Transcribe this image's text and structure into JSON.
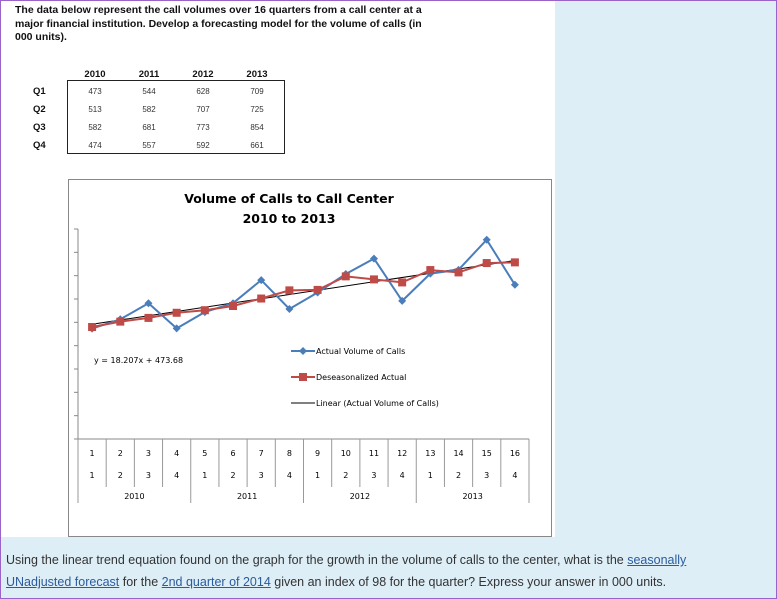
{
  "intro_text": "The data below represent the call volumes over 16 quarters from a call center at a major financial institution. Develop a forecasting model for the volume of calls (in 000 units).",
  "table": {
    "columns": [
      "2010",
      "2011",
      "2012",
      "2013"
    ],
    "rows": [
      {
        "label": "Q1",
        "values": [
          "473",
          "544",
          "628",
          "709"
        ]
      },
      {
        "label": "Q2",
        "values": [
          "513",
          "582",
          "707",
          "725"
        ]
      },
      {
        "label": "Q3",
        "values": [
          "582",
          "681",
          "773",
          "854"
        ]
      },
      {
        "label": "Q4",
        "values": [
          "474",
          "557",
          "592",
          "661"
        ]
      }
    ]
  },
  "chart_data": {
    "type": "line",
    "title": "Volume of Calls to Call Center",
    "subtitle": "2010 to 2013",
    "ylim": [
      0,
      900
    ],
    "y_ticks": [
      "0",
      "100",
      "200",
      "300",
      "400",
      "500",
      "600",
      "700",
      "800",
      "900"
    ],
    "x_index_labels": [
      "1",
      "2",
      "3",
      "4",
      "5",
      "6",
      "7",
      "8",
      "9",
      "10",
      "11",
      "12",
      "13",
      "14",
      "15",
      "16"
    ],
    "x_quarter_labels": [
      "1",
      "2",
      "3",
      "4",
      "1",
      "2",
      "3",
      "4",
      "1",
      "2",
      "3",
      "4",
      "1",
      "2",
      "3",
      "4"
    ],
    "x_year_labels": [
      "2010",
      "2011",
      "2012",
      "2013"
    ],
    "trend_equation": "y = 18.207x + 473.68",
    "trend": {
      "slope": 18.207,
      "intercept": 473.68
    },
    "legend_position": "right",
    "series": [
      {
        "name": "Actual Volume of Calls",
        "color": "#4a7ebb",
        "marker": "diamond",
        "values": [
          473,
          513,
          582,
          474,
          544,
          582,
          681,
          557,
          628,
          707,
          773,
          592,
          709,
          725,
          854,
          661
        ]
      },
      {
        "name": "Deseasonalized Actual",
        "color": "#be4b48",
        "marker": "square",
        "values": [
          480,
          503,
          519,
          541,
          552,
          570,
          602,
          637,
          639,
          697,
          684,
          671,
          724,
          714,
          754,
          757
        ]
      }
    ],
    "trend_legend": "Linear (Actual Volume of Calls)"
  },
  "question": {
    "part1": "Using the linear trend equation found on the graph for the growth in the volume of calls to the center, what is the ",
    "link1": "seasonally UNadjusted forecast",
    "part2": " for the ",
    "link2": "2nd quarter of 2014",
    "part3": " given an index of 98 for the quarter? Express your answer in 000 units."
  }
}
